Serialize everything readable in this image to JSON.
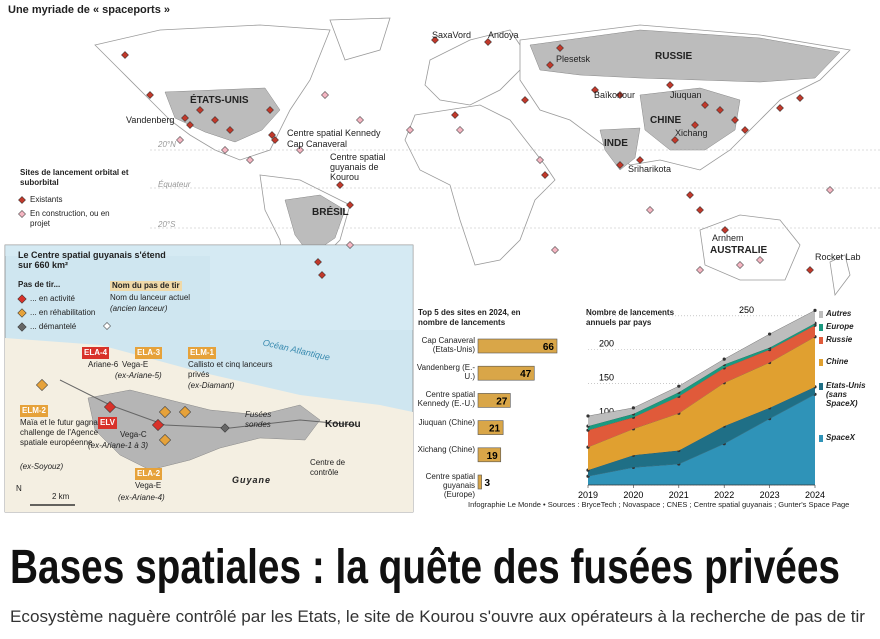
{
  "header": {
    "title": "Une myriade de « spaceports »"
  },
  "map": {
    "labels": [
      "SaxaVord",
      "Andoya",
      "Plesetsk",
      "RUSSIE",
      "ÉTATS-UNIS",
      "Baïkonour",
      "Jiuquan",
      "Vandenberg",
      "Centre spatial Kennedy",
      "Cap Canaveral",
      "CHINE",
      "Xichang",
      "INDE",
      "Sriharikota",
      "Centre spatial guyanais de Kourou",
      "BRÉSIL",
      "Arnhem",
      "AUSTRALIE",
      "Rocket Lab"
    ],
    "parallels": [
      "20°N",
      "Équateur",
      "20°S"
    ],
    "legend": {
      "title": "Sites de lancement orbital et suborbital",
      "items": [
        {
          "label": "Existants",
          "color": "#c0392b"
        },
        {
          "label": "En construction, ou en projet",
          "color": "#f4b6c2"
        }
      ]
    }
  },
  "inset": {
    "title": "Le Centre spatial guyanais s'étend sur 660 km²",
    "legend": {
      "title": "Pas de tir...",
      "items": [
        {
          "label": "... en activité",
          "color": "#d8322a"
        },
        {
          "label": "... en réhabilitation",
          "color": "#e6a23a"
        },
        {
          "label": "... démantelé",
          "color": "#666666"
        }
      ],
      "key": [
        "Nom du pas de tir",
        "Nom du lanceur actuel",
        "(ancien lanceur)"
      ]
    },
    "pads": [
      {
        "code": "ELA-4",
        "launcher": "Ariane-6",
        "color": "#d8322a"
      },
      {
        "code": "ELA-3",
        "launcher": "Vega-E",
        "former": "(ex-Ariane-5)",
        "color": "#e6a23a"
      },
      {
        "code": "ELM-1",
        "launcher": "Callisto et cinq lanceurs privés",
        "former": "(ex-Diamant)",
        "color": "#e6a23a"
      },
      {
        "code": "ELM-2",
        "launcher": "Maïa et le futur gagnant du challenge de l'Agence spatiale européenne",
        "former": "(ex-Soyouz)",
        "color": "#e6a23a"
      },
      {
        "code": "ELV",
        "launcher": "Vega-C",
        "former": "(ex-Ariane-1 à 3)",
        "color": "#d8322a"
      },
      {
        "code": "ELA-2",
        "launcher": "Vega-E",
        "former": "(ex-Ariane-4)",
        "color": "#e6a23a"
      }
    ],
    "labels": [
      "Océan Atlantique",
      "Fusées sondes",
      "Kourou",
      "Centre de contrôle",
      "Guyane",
      "2 km",
      "N"
    ]
  },
  "chart_data": [
    {
      "type": "bar",
      "title": "Top 5 des sites en 2024, en nombre de lancements",
      "categories": [
        "Cap Canaveral (Etats-Unis)",
        "Vandenberg (E.-U.)",
        "Centre spatial Kennedy (E.-U.)",
        "Jiuquan (Chine)",
        "Xichang (Chine)",
        "Centre spatial guyanais (Europe)"
      ],
      "values": [
        66,
        47,
        27,
        21,
        19,
        3
      ],
      "color": "#d9a648"
    },
    {
      "type": "stacked-area",
      "title": "Nombre de lancements annuels par pays",
      "x": [
        2019,
        2020,
        2021,
        2022,
        2023,
        2024
      ],
      "xlim": [
        2019,
        2024
      ],
      "xticks": [
        2019,
        2020,
        2021,
        2022,
        2023,
        2024
      ],
      "ylim": [
        0,
        260
      ],
      "yticks": [
        0,
        50,
        100,
        150,
        200,
        250
      ],
      "grid": true,
      "series": [
        {
          "name": "SpaceX",
          "color": "#2f93b8",
          "values": [
            13,
            26,
            31,
            61,
            98,
            134
          ]
        },
        {
          "name": "Etats-Unis (sans SpaceX)",
          "color": "#1f6f86",
          "values": [
            9,
            18,
            20,
            26,
            16,
            11
          ]
        },
        {
          "name": "Chine",
          "color": "#e0a030",
          "values": [
            34,
            39,
            55,
            64,
            67,
            74
          ]
        },
        {
          "name": "Russie",
          "color": "#e05a3a",
          "values": [
            25,
            17,
            25,
            22,
            19,
            17
          ]
        },
        {
          "name": "Europe",
          "color": "#1a9a80",
          "values": [
            6,
            5,
            6,
            5,
            3,
            3
          ]
        },
        {
          "name": "Autres",
          "color": "#bdbdbd",
          "values": [
            15,
            9,
            9,
            8,
            20,
            19
          ]
        }
      ]
    }
  ],
  "source": "Infographie Le Monde • Sources : BryceTech ; Novaspace ; CNES ; Centre spatial guyanais ; Gunter's Space Page",
  "headline": {
    "title": "Bases spatiales : la quête des fusées privées",
    "subtitle": "Ecosystème naguère contrôlé par les Etats, le site de Kourou s'ouvre aux opérateurs à la recherche de pas de tir"
  }
}
